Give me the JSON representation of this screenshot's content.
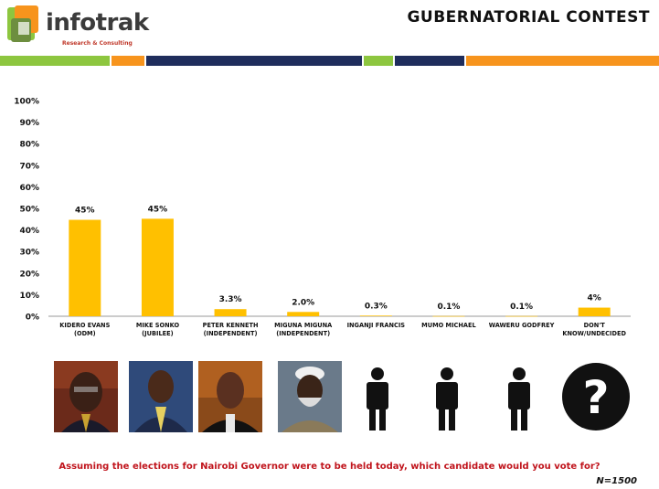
{
  "header": {
    "logo_text": "infotrak",
    "logo_tagline": "Research & Consulting",
    "title": "GUBERNATORIAL  CONTEST"
  },
  "colors": {
    "bar": "#FFC000",
    "green": "#8DC63F",
    "orange": "#F7941D",
    "navy": "#1F2D5C"
  },
  "chart_data": {
    "type": "bar",
    "title": "",
    "xlabel": "",
    "ylabel": "",
    "ylim": [
      0,
      100
    ],
    "yticks": [
      "0%",
      "10%",
      "20%",
      "30%",
      "40%",
      "50%",
      "60%",
      "70%",
      "80%",
      "90%",
      "100%"
    ],
    "categories": [
      [
        "KIDERO EVANS",
        "(ODM)"
      ],
      [
        "MIKE SONKO",
        "(JUBILEE)"
      ],
      [
        "PETER KENNETH",
        "(INDEPENDENT)"
      ],
      [
        "MIGUNA MIGUNA",
        "(INDEPENDENT)"
      ],
      [
        "INGANJI FRANCIS"
      ],
      [
        "MUMO MICHAEL"
      ],
      [
        "WAWERU GODFREY"
      ],
      [
        "DON'T",
        "KNOW/UNDECIDED"
      ]
    ],
    "values": [
      44.7,
      45.2,
      3.3,
      2.0,
      0.3,
      0.1,
      0.1,
      4.0
    ],
    "data_labels": [
      "45%",
      "45%",
      "3.3%",
      "2.0%",
      "0.3%",
      "0.1%",
      "0.1%",
      "4%"
    ],
    "grid": false,
    "legend": "none"
  },
  "photos": [
    {
      "icon": "candidate-photo-kidero"
    },
    {
      "icon": "candidate-photo-sonko"
    },
    {
      "icon": "candidate-photo-kenneth"
    },
    {
      "icon": "candidate-photo-miguna"
    },
    {
      "icon": "person-silhouette-icon"
    },
    {
      "icon": "person-silhouette-icon"
    },
    {
      "icon": "person-silhouette-icon"
    },
    {
      "icon": "question-mark-icon"
    }
  ],
  "footer": {
    "question": "Assuming the elections for Nairobi Governor were to be held today, which candidate would you vote for?",
    "sample": "N=1500"
  }
}
